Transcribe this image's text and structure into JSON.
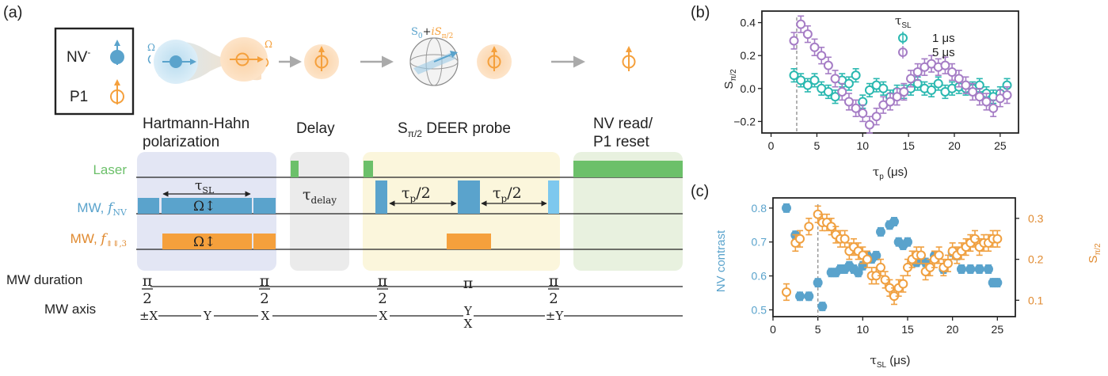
{
  "colors": {
    "nv": "#5aa3cc",
    "p1": "#f5a03c",
    "laser": "#6cc06a",
    "teal": "#2ab8b0",
    "purple": "#a57cc5",
    "blue_dot": "#5aa3cc",
    "orange": "#f0a040",
    "dashed": "#999999"
  },
  "panel_a": {
    "label": "(a)",
    "legend": {
      "nv": "NV",
      "nv_sup": "-",
      "p1": "P1"
    },
    "omega": "Ω",
    "superposition": {
      "s0": "S",
      "s0_sub": "0",
      "plus": "+",
      "i": "i",
      "s": "S",
      "sub": "π/2"
    },
    "sections": [
      {
        "line1": "Hartmann-Hahn",
        "line2": "polarization"
      },
      {
        "line1": "Delay",
        "line2": ""
      },
      {
        "line1": "S",
        "sub": "π/2",
        "line1b": " DEER probe",
        "line2": ""
      },
      {
        "line1": "NV read/",
        "line2": "P1 reset"
      }
    ],
    "rows": {
      "laser": "Laser",
      "mw_nv": "MW, ",
      "mw_nv_f": "f",
      "mw_nv_sub": "NV",
      "mw_p1": "MW, ",
      "mw_p1_f": "f",
      "mw_p1_sub": "⇑⇓,3",
      "duration": "MW duration",
      "axis": "MW axis"
    },
    "labels": {
      "tau_sl": "τ",
      "tau_sl_sub": "SL",
      "omega_arrow": "Ω↕",
      "omega_arrow2": "Ω↕",
      "tau_delay": "τ",
      "tau_delay_sub": "delay",
      "tau_p_half": "τ",
      "tau_p_sub": "p",
      "tau_p_rest": "/2"
    },
    "durations": [
      "π",
      "2",
      "π",
      "2",
      "π",
      "2",
      "π",
      "π",
      "2"
    ],
    "axes": [
      "±X",
      "Y",
      "X",
      "X",
      "Y",
      "X",
      "±Y"
    ]
  },
  "panel_b": {
    "label": "(b)",
    "ylabel": "S",
    "ylabel_sub": "π/2",
    "xlabel": "τ",
    "xlabel_sub": "p",
    "xlabel_unit": " (μs)",
    "legend_title": "τ",
    "legend_title_sub": "SL",
    "legend": [
      "1 μs",
      "5 μs"
    ],
    "xticks": [
      "0",
      "5",
      "10",
      "15",
      "20",
      "25"
    ],
    "yticks": [
      "−0.2",
      "0.0",
      "0.2",
      "0.4"
    ]
  },
  "panel_c": {
    "label": "(c)",
    "ylabel_left": "NV contrast",
    "ylabel_right": "S",
    "ylabel_right_sub": "π/2",
    "xlabel": "τ",
    "xlabel_sub": "SL",
    "xlabel_unit": " (μs)",
    "xticks": [
      "0",
      "5",
      "10",
      "15",
      "20",
      "25"
    ],
    "yticks_left": [
      "0.5",
      "0.6",
      "0.7",
      "0.8"
    ],
    "yticks_right": [
      "0.1",
      "0.2",
      "0.3"
    ]
  },
  "chart_data": [
    {
      "type": "scatter",
      "panel": "b",
      "xlabel": "τp (μs)",
      "ylabel": "Sπ/2",
      "xlim": [
        -1,
        27
      ],
      "ylim": [
        -0.27,
        0.47
      ],
      "series": [
        {
          "name": "1 μs",
          "marker": "open circle",
          "color": "teal",
          "x": [
            2.5,
            3.25,
            4,
            4.75,
            5.5,
            6.25,
            7,
            7.75,
            8.5,
            9.25,
            10,
            10.75,
            11.5,
            12.25,
            13,
            13.75,
            14.5,
            15.25,
            16,
            16.75,
            17.5,
            18.25,
            19,
            19.75,
            20.5,
            21.25,
            22,
            22.75,
            23.5,
            24.25,
            25,
            25.75
          ],
          "y": [
            0.08,
            0.05,
            0.02,
            0.05,
            0.0,
            -0.02,
            -0.05,
            0.05,
            0.03,
            0.08,
            -0.08,
            -0.01,
            0.02,
            0.0,
            -0.05,
            -0.02,
            -0.02,
            0.0,
            0.03,
            0.0,
            -0.01,
            0.03,
            -0.02,
            0.0,
            0.01,
            0.0,
            0.0,
            0.02,
            -0.03,
            -0.05,
            -0.03,
            0.02
          ],
          "err": 0.04
        },
        {
          "name": "5 μs",
          "marker": "open circle",
          "color": "purple",
          "x": [
            2.5,
            3.25,
            4,
            4.75,
            5.5,
            6.25,
            7,
            7.75,
            8.5,
            9.25,
            10,
            10.75,
            11.5,
            12.25,
            13,
            13.75,
            14.5,
            15.25,
            16,
            16.75,
            17.5,
            18.25,
            19,
            19.75,
            20.5,
            21.25,
            22,
            22.75,
            23.5,
            24.25,
            25,
            25.75
          ],
          "y": [
            0.29,
            0.39,
            0.33,
            0.25,
            0.2,
            0.14,
            0.06,
            -0.02,
            -0.08,
            -0.12,
            -0.15,
            -0.22,
            -0.17,
            -0.1,
            -0.08,
            -0.05,
            -0.02,
            0.06,
            0.1,
            0.13,
            0.15,
            0.13,
            0.14,
            0.1,
            0.06,
            0.02,
            -0.02,
            -0.05,
            -0.08,
            -0.12,
            -0.06,
            -0.04
          ],
          "err": 0.05
        }
      ],
      "vline_x": 2.8
    },
    {
      "type": "scatter",
      "panel": "c",
      "xlabel": "τSL (μs)",
      "ylabel_left": "NV contrast",
      "ylabel_right": "Sπ/2",
      "xlim": [
        0,
        27
      ],
      "ylim_left": [
        0.48,
        0.83
      ],
      "ylim_right": [
        0.06,
        0.35
      ],
      "series": [
        {
          "name": "NV contrast",
          "axis": "left",
          "marker": "filled circle",
          "color": "blue_dot",
          "x": [
            1.5,
            2.5,
            3,
            4,
            5,
            5.5,
            6.5,
            7,
            7.5,
            8,
            8.5,
            9,
            9.5,
            10,
            10.5,
            11,
            11.5,
            12,
            13,
            13.5,
            14,
            14.5,
            15,
            16,
            17,
            18,
            19,
            20,
            20.5,
            21,
            22,
            23,
            24,
            24.5,
            25
          ],
          "y": [
            0.8,
            0.72,
            0.54,
            0.54,
            0.58,
            0.51,
            0.61,
            0.61,
            0.62,
            0.62,
            0.63,
            0.62,
            0.61,
            0.63,
            0.66,
            0.65,
            0.66,
            0.73,
            0.75,
            0.76,
            0.7,
            0.69,
            0.7,
            0.64,
            0.64,
            0.66,
            0.62,
            0.67,
            0.66,
            0.62,
            0.62,
            0.62,
            0.62,
            0.58,
            0.58
          ],
          "err": 0.012
        },
        {
          "name": "Sπ/2",
          "axis": "right",
          "marker": "open circle",
          "color": "orange",
          "x": [
            1.5,
            2.5,
            3,
            4,
            5,
            5.5,
            6,
            6.5,
            7,
            7.5,
            8,
            8.5,
            9,
            9.5,
            10,
            10.5,
            11,
            11.5,
            12,
            12.5,
            13,
            13.5,
            14,
            14.5,
            15,
            15.5,
            16,
            16.5,
            17,
            17.5,
            18,
            18.5,
            19,
            19.5,
            20,
            20.5,
            21,
            21.5,
            22,
            22.5,
            23,
            23.5,
            24,
            24.5,
            25
          ],
          "y": [
            0.12,
            0.24,
            0.25,
            0.28,
            0.31,
            0.29,
            0.29,
            0.28,
            0.26,
            0.25,
            0.25,
            0.22,
            0.23,
            0.22,
            0.21,
            0.2,
            0.16,
            0.16,
            0.18,
            0.15,
            0.13,
            0.11,
            0.13,
            0.14,
            0.18,
            0.2,
            0.21,
            0.21,
            0.17,
            0.18,
            0.2,
            0.21,
            0.18,
            0.19,
            0.22,
            0.21,
            0.22,
            0.23,
            0.24,
            0.25,
            0.23,
            0.24,
            0.24,
            0.25,
            0.25
          ],
          "err": 0.02
        }
      ],
      "vline_x": 5
    }
  ]
}
